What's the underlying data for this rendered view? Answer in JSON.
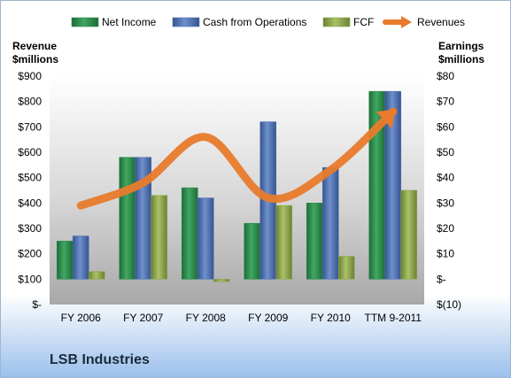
{
  "company_label": "LSB Industries",
  "colors": {
    "net_income": "#2e8b4e",
    "cash_from_operations": "#4f74b8",
    "fcf": "#8fa84e",
    "revenues": "#e87b2c"
  },
  "chart_data": {
    "type": "bar",
    "categories": [
      "FY 2006",
      "FY 2007",
      "FY 2008",
      "FY 2009",
      "FY 2010",
      "TTM 9-2011"
    ],
    "series": [
      {
        "name": "Net Income",
        "axis": "right",
        "values": [
          15,
          48,
          36,
          22,
          30,
          74
        ]
      },
      {
        "name": "Cash from Operations",
        "axis": "right",
        "values": [
          17,
          48,
          32,
          62,
          44,
          74
        ]
      },
      {
        "name": "FCF",
        "axis": "right",
        "values": [
          3,
          33,
          -1,
          29,
          9,
          35
        ]
      },
      {
        "name": "Revenues",
        "type": "line",
        "axis": "left",
        "values": [
          390,
          480,
          660,
          420,
          530,
          760
        ]
      }
    ],
    "left_axis": {
      "title_line1": "Revenue",
      "title_line2": "$millions",
      "ylim": [
        0,
        900
      ],
      "ticks": [
        "$-",
        "$100",
        "$200",
        "$300",
        "$400",
        "$500",
        "$600",
        "$700",
        "$800",
        "$900"
      ]
    },
    "right_axis": {
      "title_line1": "Earnings",
      "title_line2": "$millions",
      "ylim": [
        -10,
        80
      ],
      "ticks": [
        "$(10)",
        "$-",
        "$10",
        "$20",
        "$30",
        "$40",
        "$50",
        "$60",
        "$70",
        "$80"
      ]
    },
    "legend_position": "top",
    "grid": false
  }
}
